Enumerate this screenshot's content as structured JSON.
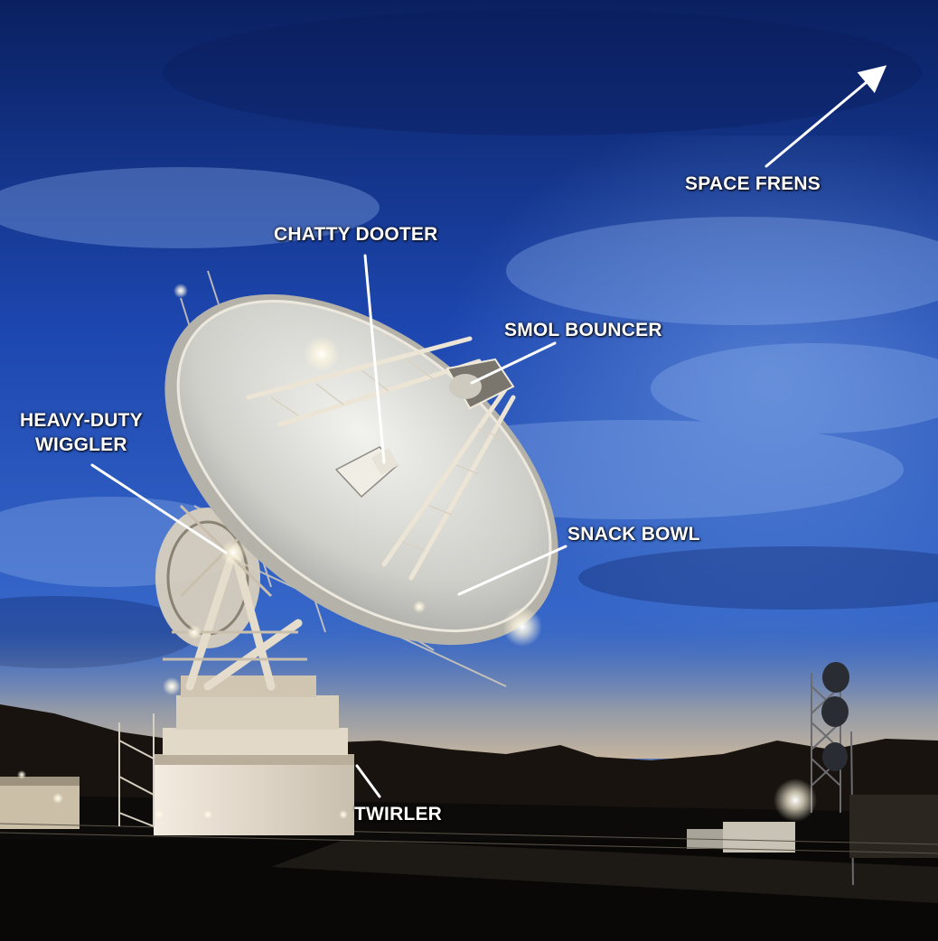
{
  "colors": {
    "sky_top": "#0d2a78",
    "sky_mid": "#2456c4",
    "sky_horizon": "#6d8fc8",
    "dusk_glow": "#d9c7a8",
    "mountains": "#15120f",
    "ground": "#0a0908",
    "dish_surface": "#dcdcd8",
    "structure": "#e8e2d6",
    "annotation": "#ffffff"
  },
  "annotations": {
    "space_frens": "SPACE FRENS",
    "chatty_dooter": "CHATTY DOOTER",
    "smol_bouncer": "SMOL BOUNCER",
    "heavy_duty_wiggler_line1": "HEAVY-DUTY",
    "heavy_duty_wiggler_line2": "WIGGLER",
    "snack_bowl": "SNACK BOWL",
    "twirler": "TWIRLER"
  },
  "icons": {
    "pointer": "arrow-icon"
  }
}
